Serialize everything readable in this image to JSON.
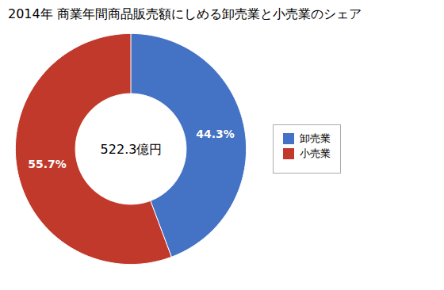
{
  "chart_data": {
    "type": "pie",
    "title": "2014年 商業年間商品販売額にしめる卸売業と小売業のシェア",
    "center_text": "522.3億円",
    "categories": [
      "卸売業",
      "小売業"
    ],
    "values": [
      44.3,
      55.7
    ],
    "value_labels": [
      "44.3%",
      "55.7%"
    ],
    "colors": [
      "#4472C4",
      "#C0392B"
    ],
    "data_labels": true,
    "legend": "right"
  }
}
